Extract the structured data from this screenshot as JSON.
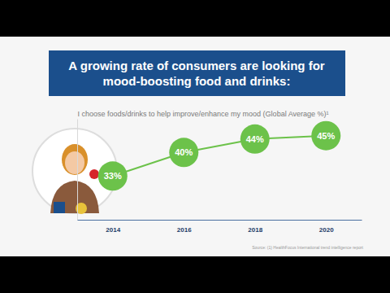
{
  "chart_data": {
    "type": "line",
    "title": "A growing rate of consumers are looking for mood-boosting food and drinks:",
    "subtitle": "I choose foods/drinks to help improve/enhance my mood (Global Average %)¹",
    "source": "Source: (1) HealthFocus International trend intelligence report",
    "categories": [
      "2014",
      "2016",
      "2018",
      "2020"
    ],
    "values": [
      33,
      40,
      44,
      45
    ],
    "value_labels": [
      "33%",
      "40%",
      "44%",
      "45%"
    ],
    "color": "#6cc24a",
    "marker": "circle",
    "data_labels": true,
    "ylim": [
      20,
      50
    ],
    "grid": false,
    "tick_labels": "x"
  }
}
